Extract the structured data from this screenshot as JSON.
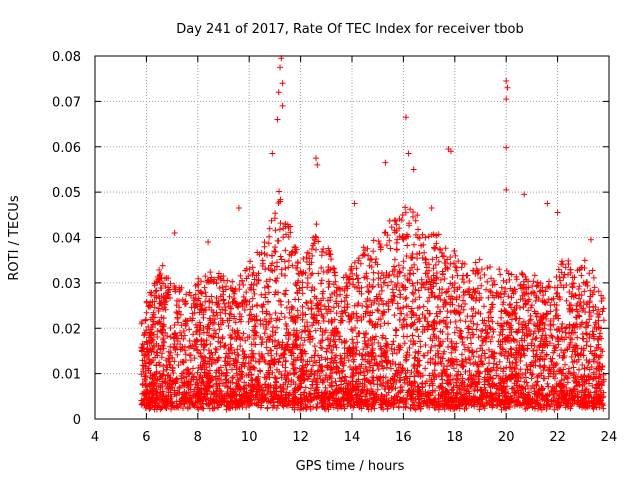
{
  "chart_data": {
    "type": "scatter",
    "title": "Day 241 of 2017, Rate Of TEC Index for receiver tbob",
    "xlabel": "GPS time / hours",
    "ylabel": "ROTI / TECUs",
    "xlim": [
      4,
      24
    ],
    "ylim": [
      0,
      0.08
    ],
    "x_ticks": [
      4,
      6,
      8,
      10,
      12,
      14,
      16,
      18,
      20,
      22,
      24
    ],
    "y_ticks": [
      0,
      0.01,
      0.02,
      0.03,
      0.04,
      0.05,
      0.06,
      0.07,
      0.08
    ],
    "x_tick_labels": [
      "4",
      "6",
      "8",
      "10",
      "12",
      "14",
      "16",
      "18",
      "20",
      "22",
      "24"
    ],
    "y_tick_labels": [
      "0",
      "0.01",
      "0.02",
      "0.03",
      "0.04",
      "0.05",
      "0.06",
      "0.07",
      "0.08"
    ],
    "grid": true,
    "marker": "+",
    "marker_color": "#ff0000",
    "data_x_range": [
      5.8,
      23.8
    ],
    "bulk_y_range": [
      0.003,
      0.03
    ],
    "notable_points": [
      {
        "x": 7.1,
        "y": 0.041
      },
      {
        "x": 8.4,
        "y": 0.039
      },
      {
        "x": 9.6,
        "y": 0.0465
      },
      {
        "x": 10.9,
        "y": 0.0585
      },
      {
        "x": 11.1,
        "y": 0.066
      },
      {
        "x": 11.15,
        "y": 0.072
      },
      {
        "x": 11.2,
        "y": 0.0775
      },
      {
        "x": 11.25,
        "y": 0.0795
      },
      {
        "x": 11.3,
        "y": 0.074
      },
      {
        "x": 11.3,
        "y": 0.069
      },
      {
        "x": 12.6,
        "y": 0.0575
      },
      {
        "x": 12.65,
        "y": 0.056
      },
      {
        "x": 14.1,
        "y": 0.0475
      },
      {
        "x": 15.3,
        "y": 0.0565
      },
      {
        "x": 16.1,
        "y": 0.0665
      },
      {
        "x": 16.2,
        "y": 0.0585
      },
      {
        "x": 16.4,
        "y": 0.055
      },
      {
        "x": 17.1,
        "y": 0.0465
      },
      {
        "x": 17.75,
        "y": 0.0595
      },
      {
        "x": 17.85,
        "y": 0.059
      },
      {
        "x": 20.0,
        "y": 0.0745
      },
      {
        "x": 20.05,
        "y": 0.073
      },
      {
        "x": 20.0,
        "y": 0.0705
      },
      {
        "x": 20.0,
        "y": 0.0598
      },
      {
        "x": 20.0,
        "y": 0.0505
      },
      {
        "x": 20.7,
        "y": 0.0495
      },
      {
        "x": 21.6,
        "y": 0.0475
      },
      {
        "x": 22.0,
        "y": 0.0455
      },
      {
        "x": 23.3,
        "y": 0.0395
      }
    ],
    "envelope": [
      {
        "x": 5.8,
        "y": 0.022
      },
      {
        "x": 6.5,
        "y": 0.034
      },
      {
        "x": 7.5,
        "y": 0.028
      },
      {
        "x": 8.5,
        "y": 0.033
      },
      {
        "x": 9.5,
        "y": 0.03
      },
      {
        "x": 10.5,
        "y": 0.038
      },
      {
        "x": 11.2,
        "y": 0.05
      },
      {
        "x": 12.0,
        "y": 0.034
      },
      {
        "x": 12.6,
        "y": 0.045
      },
      {
        "x": 13.5,
        "y": 0.032
      },
      {
        "x": 14.2,
        "y": 0.036
      },
      {
        "x": 15.0,
        "y": 0.04
      },
      {
        "x": 15.5,
        "y": 0.044
      },
      {
        "x": 16.2,
        "y": 0.048
      },
      {
        "x": 17.0,
        "y": 0.042
      },
      {
        "x": 17.8,
        "y": 0.04
      },
      {
        "x": 18.5,
        "y": 0.034
      },
      {
        "x": 19.5,
        "y": 0.035
      },
      {
        "x": 20.5,
        "y": 0.032
      },
      {
        "x": 21.5,
        "y": 0.03
      },
      {
        "x": 22.3,
        "y": 0.036
      },
      {
        "x": 23.2,
        "y": 0.034
      },
      {
        "x": 23.8,
        "y": 0.026
      }
    ]
  }
}
